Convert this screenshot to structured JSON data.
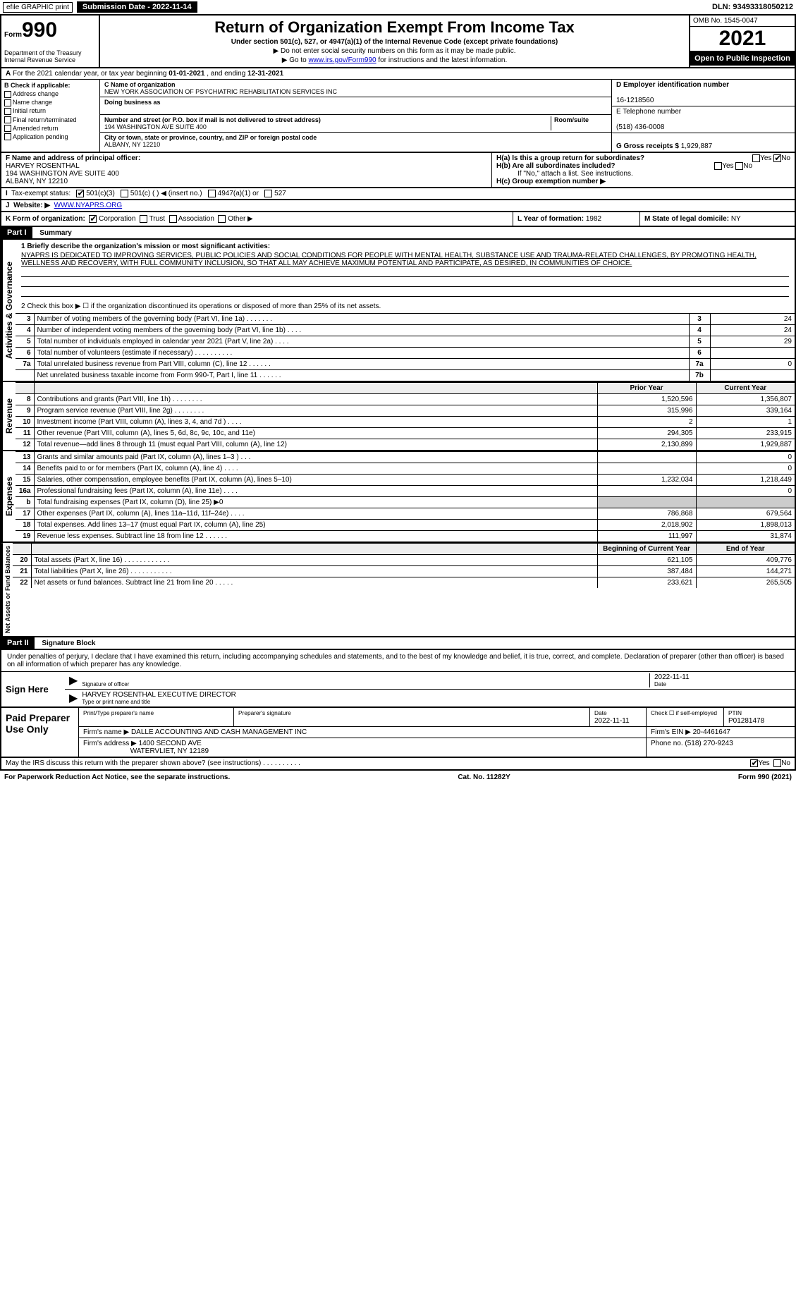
{
  "topbar": {
    "efile_label": "efile GRAPHIC print",
    "submission_label": "Submission Date - 2022-11-14",
    "dln_label": "DLN: 93493318050212"
  },
  "header": {
    "form_prefix": "Form",
    "form_number": "990",
    "title": "Return of Organization Exempt From Income Tax",
    "subtitle": "Under section 501(c), 527, or 4947(a)(1) of the Internal Revenue Code (except private foundations)",
    "hint1": "▶ Do not enter social security numbers on this form as it may be made public.",
    "hint2_pre": "▶ Go to ",
    "hint2_link": "www.irs.gov/Form990",
    "hint2_post": " for instructions and the latest information.",
    "dept": "Department of the Treasury\nInternal Revenue Service",
    "omb": "OMB No. 1545-0047",
    "year": "2021",
    "open": "Open to Public Inspection"
  },
  "row_a": {
    "label_a": "A",
    "text_pre": "For the 2021 calendar year, or tax year beginning ",
    "begin": "01-01-2021",
    "mid": " , and ending ",
    "end": "12-31-2021"
  },
  "col_b": {
    "label": "B Check if applicable:",
    "items": [
      "Address change",
      "Name change",
      "Initial return",
      "Final return/terminated",
      "Amended return",
      "Application pending"
    ]
  },
  "col_c": {
    "name_label": "C Name of organization",
    "name": "NEW YORK ASSOCIATION OF PSYCHIATRIC REHABILITATION SERVICES INC",
    "dba_label": "Doing business as",
    "dba": "",
    "street_label": "Number and street (or P.O. box if mail is not delivered to street address)",
    "room_label": "Room/suite",
    "street": "194 WASHINGTON AVE SUITE 400",
    "city_label": "City or town, state or province, country, and ZIP or foreign postal code",
    "city": "ALBANY, NY  12210"
  },
  "col_d": {
    "ein_label": "D Employer identification number",
    "ein": "16-1218560",
    "tel_label": "E Telephone number",
    "tel": "(518) 436-0008",
    "gross_label": "G Gross receipts $",
    "gross": "1,929,887"
  },
  "block_f": {
    "f_label": "F Name and address of principal officer:",
    "f_name": "HARVEY ROSENTHAL",
    "f_addr1": "194 WASHINGTON AVE SUITE 400",
    "f_addr2": "ALBANY, NY  12210",
    "ha_label": "H(a)  Is this a group return for subordinates?",
    "hb_label": "H(b)  Are all subordinates included?",
    "hb_note": "If \"No,\" attach a list. See instructions.",
    "hc_label": "H(c)  Group exemption number ▶",
    "yes": "Yes",
    "no": "No"
  },
  "row_i": {
    "label": "I",
    "text": "Tax-exempt status:",
    "opt1": "501(c)(3)",
    "opt2": "501(c) ( ) ◀ (insert no.)",
    "opt3": "4947(a)(1) or",
    "opt4": "527"
  },
  "row_j": {
    "label": "J",
    "text": "Website: ▶",
    "url": "WWW.NYAPRS.ORG"
  },
  "row_k": {
    "k_label": "K Form of organization:",
    "k_opts": [
      "Corporation",
      "Trust",
      "Association",
      "Other ▶"
    ],
    "l_label": "L Year of formation:",
    "l_val": "1982",
    "m_label": "M State of legal domicile:",
    "m_val": "NY"
  },
  "part1": {
    "hdr": "Part I",
    "title": "Summary",
    "side1": "Activities & Governance",
    "line1_label": "1  Briefly describe the organization's mission or most significant activities:",
    "mission": "NYAPRS IS DEDICATED TO IMPROVING SERVICES, PUBLIC POLICIES AND SOCIAL CONDITIONS FOR PEOPLE WITH MENTAL HEALTH, SUBSTANCE USE AND TRAUMA-RELATED CHALLENGES, BY PROMOTING HEALTH, WELLNESS AND RECOVERY, WITH FULL COMMUNITY INCLUSION, SO THAT ALL MAY ACHIEVE MAXIMUM POTENTIAL AND PARTICIPATE, AS DESIRED, IN COMMUNITIES OF CHOICE.",
    "line2": "2   Check this box ▶ ☐ if the organization discontinued its operations or disposed of more than 25% of its net assets.",
    "rows_ag": [
      {
        "no": "3",
        "desc": "Number of voting members of the governing body (Part VI, line 1a)  .   .   .   .   .   .   .",
        "box": "3",
        "val": "24"
      },
      {
        "no": "4",
        "desc": "Number of independent voting members of the governing body (Part VI, line 1b)   .   .   .   .",
        "box": "4",
        "val": "24"
      },
      {
        "no": "5",
        "desc": "Total number of individuals employed in calendar year 2021 (Part V, line 2a)   .   .   .   .",
        "box": "5",
        "val": "29"
      },
      {
        "no": "6",
        "desc": "Total number of volunteers (estimate if necessary)   .   .   .   .   .   .   .   .   .   .",
        "box": "6",
        "val": ""
      },
      {
        "no": "7a",
        "desc": "Total unrelated business revenue from Part VIII, column (C), line 12   .   .   .   .   .   .",
        "box": "7a",
        "val": "0"
      },
      {
        "no": "",
        "desc": "Net unrelated business taxable income from Form 990-T, Part I, line 11   .   .   .   .   .   .",
        "box": "7b",
        "val": ""
      }
    ],
    "side2": "Revenue",
    "col_py": "Prior Year",
    "col_cy": "Current Year",
    "rows_rev": [
      {
        "no": "8",
        "desc": "Contributions and grants (Part VIII, line 1h)   .   .   .   .   .   .   .   .",
        "py": "1,520,596",
        "cy": "1,356,807"
      },
      {
        "no": "9",
        "desc": "Program service revenue (Part VIII, line 2g)   .   .   .   .   .   .   .   .",
        "py": "315,996",
        "cy": "339,164"
      },
      {
        "no": "10",
        "desc": "Investment income (Part VIII, column (A), lines 3, 4, and 7d )   .   .   .   .",
        "py": "2",
        "cy": "1"
      },
      {
        "no": "11",
        "desc": "Other revenue (Part VIII, column (A), lines 5, 6d, 8c, 9c, 10c, and 11e)",
        "py": "294,305",
        "cy": "233,915"
      },
      {
        "no": "12",
        "desc": "Total revenue—add lines 8 through 11 (must equal Part VIII, column (A), line 12)",
        "py": "2,130,899",
        "cy": "1,929,887"
      }
    ],
    "side3": "Expenses",
    "rows_exp": [
      {
        "no": "13",
        "desc": "Grants and similar amounts paid (Part IX, column (A), lines 1–3 )   .   .   .",
        "py": "",
        "cy": "0"
      },
      {
        "no": "14",
        "desc": "Benefits paid to or for members (Part IX, column (A), line 4)   .   .   .   .",
        "py": "",
        "cy": "0"
      },
      {
        "no": "15",
        "desc": "Salaries, other compensation, employee benefits (Part IX, column (A), lines 5–10)",
        "py": "1,232,034",
        "cy": "1,218,449"
      },
      {
        "no": "16a",
        "desc": "Professional fundraising fees (Part IX, column (A), line 11e)   .   .   .   .",
        "py": "",
        "cy": "0"
      },
      {
        "no": "b",
        "desc": "Total fundraising expenses (Part IX, column (D), line 25) ▶0",
        "py": "SHADE",
        "cy": "SHADE"
      },
      {
        "no": "17",
        "desc": "Other expenses (Part IX, column (A), lines 11a–11d, 11f–24e)   .   .   .   .",
        "py": "786,868",
        "cy": "679,564"
      },
      {
        "no": "18",
        "desc": "Total expenses. Add lines 13–17 (must equal Part IX, column (A), line 25)",
        "py": "2,018,902",
        "cy": "1,898,013"
      },
      {
        "no": "19",
        "desc": "Revenue less expenses. Subtract line 18 from line 12   .   .   .   .   .   .",
        "py": "111,997",
        "cy": "31,874"
      }
    ],
    "side4": "Net Assets or Fund Balances",
    "col_boy": "Beginning of Current Year",
    "col_eoy": "End of Year",
    "rows_na": [
      {
        "no": "20",
        "desc": "Total assets (Part X, line 16)   .   .   .   .   .   .   .   .   .   .   .   .",
        "py": "621,105",
        "cy": "409,776"
      },
      {
        "no": "21",
        "desc": "Total liabilities (Part X, line 26)   .   .   .   .   .   .   .   .   .   .   .",
        "py": "387,484",
        "cy": "144,271"
      },
      {
        "no": "22",
        "desc": "Net assets or fund balances. Subtract line 21 from line 20   .   .   .   .   .",
        "py": "233,621",
        "cy": "265,505"
      }
    ]
  },
  "part2": {
    "hdr": "Part II",
    "title": "Signature Block",
    "decl": "Under penalties of perjury, I declare that I have examined this return, including accompanying schedules and statements, and to the best of my knowledge and belief, it is true, correct, and complete. Declaration of preparer (other than officer) is based on all information of which preparer has any knowledge.",
    "sign_here": "Sign Here",
    "sig_officer": "Signature of officer",
    "date_label": "Date",
    "date_val": "2022-11-11",
    "name_title": "HARVEY ROSENTHAL  EXECUTIVE DIRECTOR",
    "name_title_lab": "Type or print name and title",
    "paid_label": "Paid Preparer Use Only",
    "prep_name_lab": "Print/Type preparer's name",
    "prep_sig_lab": "Preparer's signature",
    "prep_date_lab": "Date",
    "prep_date": "2022-11-11",
    "prep_check_lab": "Check ☐ if self-employed",
    "ptin_lab": "PTIN",
    "ptin": "P01281478",
    "firm_name_lab": "Firm's name    ▶",
    "firm_name": "DALLE ACCOUNTING AND CASH MANAGEMENT INC",
    "firm_ein_lab": "Firm's EIN ▶",
    "firm_ein": "20-4461647",
    "firm_addr_lab": "Firm's address ▶",
    "firm_addr1": "1400 SECOND AVE",
    "firm_addr2": "WATERVLIET, NY  12189",
    "firm_phone_lab": "Phone no.",
    "firm_phone": "(518) 270-9243",
    "discuss": "May the IRS discuss this return with the preparer shown above? (see instructions)   .   .   .   .   .   .   .   .   .   .",
    "yes": "Yes",
    "no": "No"
  },
  "footer": {
    "pra": "For Paperwork Reduction Act Notice, see the separate instructions.",
    "cat": "Cat. No. 11282Y",
    "form": "Form 990 (2021)"
  }
}
